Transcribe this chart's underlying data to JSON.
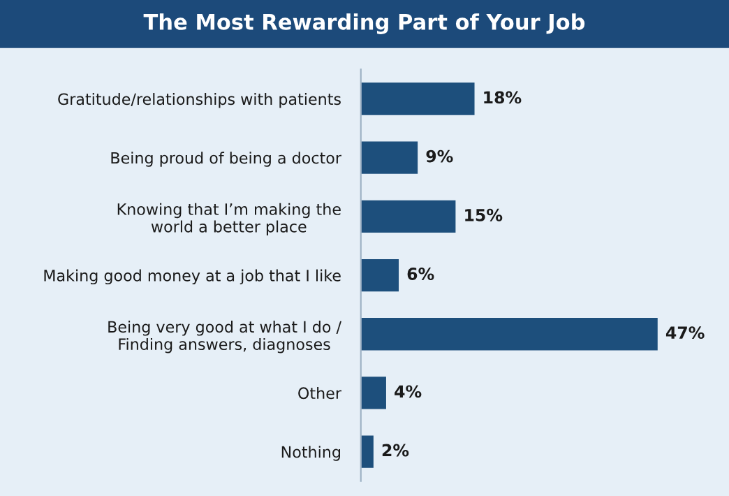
{
  "chart_data": {
    "type": "bar",
    "orientation": "horizontal",
    "title": "The Most Rewarding Part of Your Job",
    "categories": [
      "Gratitude/relationships with patients",
      "Being proud of being a doctor",
      "Knowing that I’m making the\nworld a better place",
      "Making good money at a job that I like",
      "Being very good at what I do /\nFinding answers, diagnoses",
      "Other",
      "Nothing"
    ],
    "values": [
      18,
      9,
      15,
      6,
      47,
      4,
      2
    ],
    "value_labels": [
      "18%",
      "9%",
      "15%",
      "6%",
      "47%",
      "4%",
      "2%"
    ],
    "color": "#1d4f7c",
    "grid": false,
    "legend": false
  }
}
